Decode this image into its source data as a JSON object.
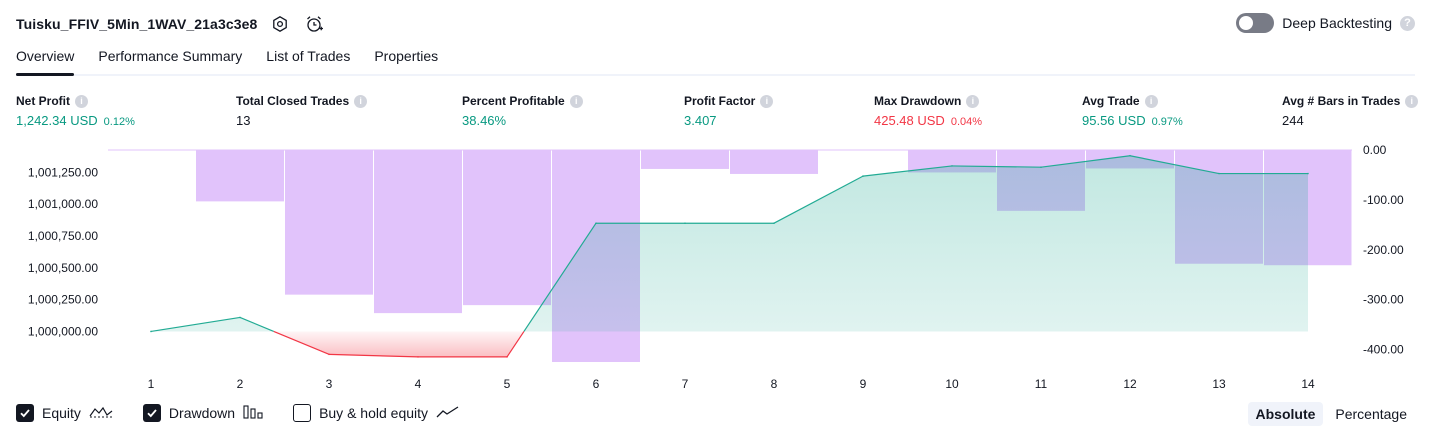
{
  "header": {
    "strategy_name": "Tuisku_FFIV_5Min_1WAV_21a3c3e8",
    "icons": [
      "settings-hex-icon",
      "add-alert-icon"
    ],
    "deep_backtesting_label": "Deep Backtesting",
    "deep_backtesting_enabled": false
  },
  "tabs": [
    {
      "label": "Overview",
      "active": true
    },
    {
      "label": "Performance Summary",
      "active": false
    },
    {
      "label": "List of Trades",
      "active": false
    },
    {
      "label": "Properties",
      "active": false
    }
  ],
  "metrics": [
    {
      "label": "Net Profit",
      "value": "1,242.34 USD",
      "pct": "0.12%",
      "status": "positive"
    },
    {
      "label": "Total Closed Trades",
      "value": "13",
      "pct": "",
      "status": "neutral"
    },
    {
      "label": "Percent Profitable",
      "value": "38.46%",
      "pct": "",
      "status": "positive"
    },
    {
      "label": "Profit Factor",
      "value": "3.407",
      "pct": "",
      "status": "positive"
    },
    {
      "label": "Max Drawdown",
      "value": "425.48 USD",
      "pct": "0.04%",
      "status": "negative"
    },
    {
      "label": "Avg Trade",
      "value": "95.56 USD",
      "pct": "0.97%",
      "status": "positive"
    },
    {
      "label": "Avg # Bars in Trades",
      "value": "244",
      "pct": "",
      "status": "neutral"
    }
  ],
  "colors": {
    "positive": "#089981",
    "negative": "#f23645",
    "drawdown_bar": "#e1c3fb",
    "equity_line": "#22ab94",
    "equity_fill": "#c9ece4",
    "loss_line": "#f23645",
    "loss_fill": "#f8c6c9"
  },
  "chart_data": {
    "type": "line",
    "x": [
      1,
      2,
      3,
      4,
      5,
      6,
      7,
      8,
      9,
      10,
      11,
      12,
      13,
      14
    ],
    "series": [
      {
        "axis": "left",
        "style": "area",
        "values": [
          1000000.0,
          1000110.0,
          999820.0,
          999800.0,
          999800.0,
          1000850.0,
          1000850.0,
          1000850.0,
          1001220.0,
          1001300.0,
          1001290.0,
          1001380.0,
          1001240.0,
          1001240.0
        ]
      },
      {
        "axis": "right",
        "style": "bar",
        "values": [
          0.0,
          -103.0,
          -290.0,
          -327.0,
          -311.0,
          -425.0,
          -38.0,
          -48.0,
          0.0,
          -45.0,
          -122.0,
          -37.0,
          -228.0,
          -231.0
        ]
      }
    ],
    "y_left_ticks": [
      "1,001,250.00",
      "1,001,000.00",
      "1,000,750.00",
      "1,000,500.00",
      "1,000,250.00",
      "1,000,000.00"
    ],
    "y_left_tick_values": [
      1001250,
      1001000,
      1000750,
      1000500,
      1000250,
      1000000
    ],
    "y_left_range": [
      999760,
      1001425
    ],
    "y_right_ticks": [
      "0.00",
      "-100.00",
      "-200.00",
      "-300.00",
      "-400.00"
    ],
    "y_right_tick_values": [
      0,
      -100,
      -200,
      -300,
      -400
    ],
    "y_right_range": [
      -425,
      0
    ],
    "x_tick_labels": [
      "1",
      "2",
      "3",
      "4",
      "5",
      "6",
      "7",
      "8",
      "9",
      "10",
      "11",
      "12",
      "13",
      "14"
    ],
    "grid": false
  },
  "legend": [
    {
      "label": "Equity",
      "checked": true,
      "icon": "equity-line-icon"
    },
    {
      "label": "Drawdown",
      "checked": true,
      "icon": "drawdown-bars-icon"
    },
    {
      "label": "Buy & hold equity",
      "checked": false,
      "icon": "buy-hold-line-icon"
    }
  ],
  "view_modes": [
    {
      "label": "Absolute",
      "active": true
    },
    {
      "label": "Percentage",
      "active": false
    }
  ]
}
